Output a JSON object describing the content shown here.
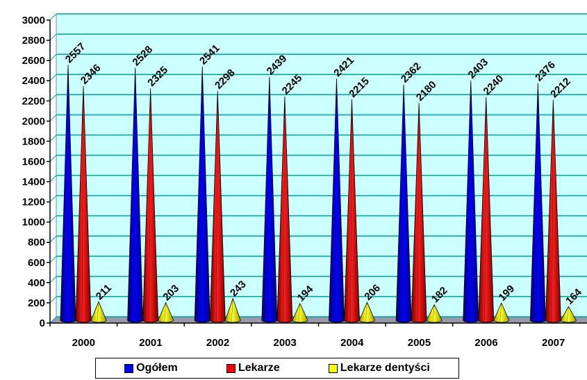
{
  "chart_data": {
    "type": "bar",
    "categories": [
      "2000",
      "2001",
      "2002",
      "2003",
      "2004",
      "2005",
      "2006",
      "2007"
    ],
    "series": [
      {
        "name": "Ogółem",
        "values": [
          2557,
          2528,
          2541,
          2439,
          2421,
          2362,
          2403,
          2376
        ],
        "color": "#0000ff",
        "labels": [
          "2557",
          "2528",
          "2541",
          "2439",
          "2421",
          "2362",
          "2403",
          "2376"
        ]
      },
      {
        "name": "Lekarze",
        "values": [
          2346,
          2325,
          2298,
          2245,
          2215,
          2180,
          2240,
          2212
        ],
        "color": "#ff0000",
        "labels": [
          "2346",
          "2325",
          "2298",
          "2245",
          "2215",
          "2180",
          "2240",
          "2212"
        ]
      },
      {
        "name": "Lekarze dentyści",
        "values": [
          211,
          203,
          243,
          194,
          206,
          182,
          199,
          164
        ],
        "color": "#ffff00",
        "labels": [
          "211",
          "203",
          "243",
          "194",
          "206",
          "182",
          "199",
          "164"
        ]
      }
    ],
    "ylim": [
      0,
      3000
    ],
    "yticks": [
      "0",
      "200",
      "400",
      "600",
      "800",
      "1000",
      "1200",
      "1400",
      "1600",
      "1800",
      "2000",
      "2200",
      "2400",
      "2600",
      "2800",
      "3000"
    ],
    "grid": true,
    "legend_position": "bottom",
    "plot_background": "#ccffff",
    "gridline_color": "#00a0a0"
  },
  "legend": {
    "items": [
      {
        "label": "Ogółem",
        "color": "#0000ff"
      },
      {
        "label": "Lekarze",
        "color": "#ff0000"
      },
      {
        "label": "Lekarze dentyści",
        "color": "#ffff00"
      }
    ]
  }
}
